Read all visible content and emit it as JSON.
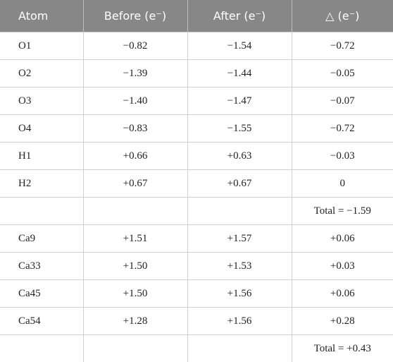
{
  "table": {
    "header": [
      "Atom",
      "Before (e⁻)",
      "After (e⁻)",
      "△ (e⁻)"
    ],
    "rows": [
      [
        "O1",
        "−0.82",
        "−1.54",
        "−0.72"
      ],
      [
        "O2",
        "−1.39",
        "−1.44",
        "−0.05"
      ],
      [
        "O3",
        "−1.40",
        "−1.47",
        "−0.07"
      ],
      [
        "O4",
        "−0.83",
        "−1.55",
        "−0.72"
      ],
      [
        "H1",
        "+0.66",
        "+0.63",
        "−0.03"
      ],
      [
        "H2",
        "+0.67",
        "+0.67",
        "0"
      ],
      [
        null,
        null,
        null,
        "Total = −1.59"
      ],
      [
        "Ca9",
        "+1.51",
        "+1.57",
        "+0.06"
      ],
      [
        "Ca33",
        "+1.50",
        "+1.53",
        "+0.03"
      ],
      [
        "Ca45",
        "+1.50",
        "+1.56",
        "+0.06"
      ],
      [
        "Ca54",
        "+1.28",
        "+1.56",
        "+0.28"
      ],
      [
        null,
        null,
        null,
        "Total = +0.43"
      ]
    ]
  }
}
